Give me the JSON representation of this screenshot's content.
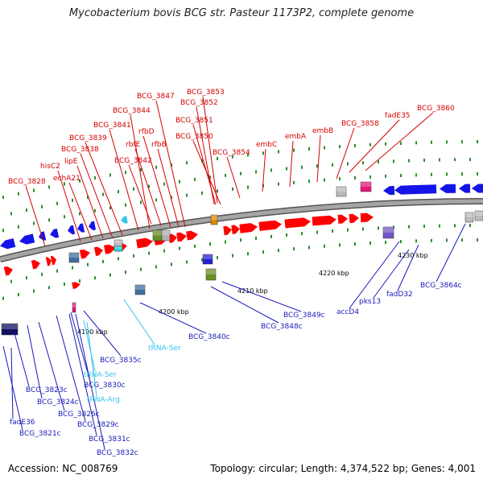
{
  "title": "Mycobacterium bovis BCG str. Pasteur 1173P2, complete genome",
  "footer": {
    "accession": "Accession: NC_008769",
    "topology": "Topology: circular; Length: 4,374,522 bp; Genes: 4,001"
  },
  "colors": {
    "forward_gene": "#ff0000",
    "reverse_gene": "#1414e6",
    "trna": "#33c4ee",
    "forward_label": "#d40000",
    "reverse_label": "#1a1ab8",
    "trna_label": "#33c4ee",
    "backbone": "#909090",
    "tick": "#2e8b2e"
  },
  "scale_labels": [
    "4190 kbp",
    "4200 kbp",
    "4210 kbp",
    "4220 kbp",
    "4230 kbp"
  ],
  "forward_labels": [
    "BCG_3828",
    "hisC2",
    "echA21",
    "lipE",
    "BCG_3838",
    "BCG_3839",
    "BCG_3841",
    "BCG_3844",
    "BCG_3847",
    "BCG_3842",
    "rbfE",
    "rfbD",
    "rfbB",
    "BCG_3853",
    "BCG_3852",
    "BCG_3851",
    "BCG_3850",
    "BCG_3854",
    "embC",
    "embA",
    "embB",
    "BCG_3858",
    "fadE35",
    "BCG_3860"
  ],
  "reverse_labels": [
    "fadE36",
    "BCG_3821c",
    "BCG_3823c",
    "BCG_3824c",
    "BCG_3826c",
    "BCG_3829c",
    "BCG_3831c",
    "BCG_3832c",
    "BCG_3830c",
    "BCG_3835c",
    "BCG_3840c",
    "BCG_3848c",
    "BCG_3849c",
    "accD4",
    "pks13",
    "fadD32",
    "BCG_3864c"
  ],
  "trna_labels": [
    "tRNA-Ser",
    "tRNA-Ser",
    "tRNA-Arg"
  ]
}
